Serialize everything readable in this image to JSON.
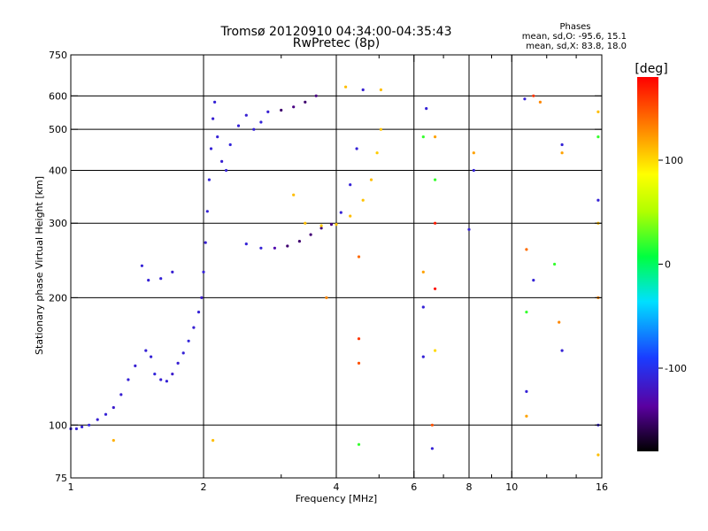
{
  "chart_data": {
    "type": "scatter",
    "title": "Tromsø 20120910 04:34:00-04:35:43",
    "subtitle": "RwPretec (8p)",
    "xlabel": "Frequency [MHz]",
    "ylabel": "Stationary phase Virtual Height [km]",
    "x_scale": "log",
    "y_scale": "log",
    "xlim": [
      1,
      16
    ],
    "ylim": [
      75,
      750
    ],
    "x_ticks": [
      1,
      2,
      4,
      6,
      8,
      10,
      16
    ],
    "x_tick_labels": [
      "1",
      "2",
      "4",
      "6",
      "8",
      "10",
      "16"
    ],
    "x_minor_ticks": [
      3,
      5,
      7,
      9,
      12,
      14
    ],
    "y_ticks": [
      75,
      100,
      200,
      300,
      400,
      500,
      600,
      750
    ],
    "y_tick_labels": [
      "75",
      "100",
      "200",
      "300",
      "400",
      "500",
      "600",
      "750"
    ],
    "grid": true,
    "phases": {
      "title": "Phases",
      "line_o": "mean, sd,O: -95.6, 15.1",
      "line_x": "mean, sd,X:  83.8, 18.0"
    },
    "colorbar": {
      "label": "[deg]",
      "min": -180,
      "max": 180,
      "ticks": [
        100,
        0,
        -100
      ],
      "tick_labels": [
        "100",
        "0",
        "-100"
      ]
    },
    "series": [
      {
        "points": [
          [
            1.0,
            98,
            -110
          ],
          [
            1.03,
            98,
            -110
          ],
          [
            1.06,
            99,
            -110
          ],
          [
            1.1,
            100,
            -108
          ],
          [
            1.15,
            103,
            -112
          ],
          [
            1.2,
            106,
            -110
          ],
          [
            1.25,
            110,
            -115
          ],
          [
            1.3,
            118,
            -112
          ],
          [
            1.35,
            128,
            -110
          ],
          [
            1.4,
            138,
            -112
          ],
          [
            1.48,
            150,
            -110
          ],
          [
            1.52,
            145,
            -110
          ],
          [
            1.55,
            132,
            -108
          ],
          [
            1.6,
            128,
            -112
          ],
          [
            1.65,
            127,
            -110
          ],
          [
            1.7,
            132,
            -115
          ],
          [
            1.75,
            140,
            -112
          ],
          [
            1.8,
            148,
            -110
          ],
          [
            1.85,
            158,
            -108
          ],
          [
            1.9,
            170,
            -112
          ],
          [
            1.95,
            185,
            -110
          ],
          [
            1.98,
            200,
            -115
          ],
          [
            2.0,
            230,
            -110
          ],
          [
            2.02,
            270,
            -112
          ],
          [
            2.04,
            320,
            -110
          ],
          [
            2.06,
            380,
            -108
          ],
          [
            2.08,
            450,
            -110
          ],
          [
            2.1,
            530,
            -112
          ],
          [
            2.12,
            580,
            -110
          ],
          [
            2.15,
            480,
            -110
          ],
          [
            2.2,
            420,
            -112
          ],
          [
            2.25,
            400,
            -110
          ],
          [
            2.3,
            460,
            -108
          ],
          [
            2.4,
            510,
            -110
          ],
          [
            2.5,
            540,
            -112
          ],
          [
            2.6,
            500,
            -110
          ],
          [
            2.7,
            520,
            -108
          ],
          [
            2.8,
            550,
            -112
          ],
          [
            3.0,
            555,
            -150
          ],
          [
            3.2,
            565,
            -145
          ],
          [
            3.4,
            580,
            -150
          ],
          [
            3.6,
            600,
            -145
          ],
          [
            1.5,
            220,
            -110
          ],
          [
            1.6,
            222,
            -110
          ],
          [
            1.7,
            230,
            -112
          ],
          [
            1.45,
            238,
            -110
          ],
          [
            2.5,
            268,
            -110
          ],
          [
            2.7,
            262,
            -110
          ],
          [
            2.9,
            262,
            -130
          ],
          [
            3.1,
            265,
            -150
          ],
          [
            3.3,
            272,
            -150
          ],
          [
            3.5,
            282,
            -148
          ],
          [
            3.7,
            292,
            -148
          ],
          [
            3.9,
            298,
            -145
          ],
          [
            4.1,
            318,
            -110
          ],
          [
            4.3,
            370,
            -110
          ],
          [
            4.45,
            450,
            -110
          ],
          [
            4.6,
            620,
            -112
          ],
          [
            3.4,
            300,
            110
          ],
          [
            3.7,
            296,
            105
          ],
          [
            4.0,
            298,
            108
          ],
          [
            4.3,
            312,
            110
          ],
          [
            4.6,
            340,
            108
          ],
          [
            4.8,
            380,
            110
          ],
          [
            4.95,
            440,
            105
          ],
          [
            5.05,
            500,
            108
          ],
          [
            5.05,
            620,
            110
          ],
          [
            4.2,
            630,
            110
          ],
          [
            1.25,
            92,
            115
          ],
          [
            2.1,
            92,
            110
          ],
          [
            3.2,
            350,
            110
          ],
          [
            4.5,
            90,
            20
          ],
          [
            4.5,
            250,
            140
          ],
          [
            4.5,
            160,
            160
          ],
          [
            4.5,
            140,
            150
          ],
          [
            3.8,
            200,
            130
          ],
          [
            6.3,
            230,
            120
          ],
          [
            6.3,
            190,
            -110
          ],
          [
            6.3,
            145,
            -110
          ],
          [
            6.3,
            480,
            20
          ],
          [
            6.4,
            560,
            -110
          ],
          [
            6.6,
            100,
            150
          ],
          [
            6.6,
            88,
            -110
          ],
          [
            6.7,
            300,
            170
          ],
          [
            6.7,
            210,
            175
          ],
          [
            6.7,
            480,
            120
          ],
          [
            6.7,
            380,
            20
          ],
          [
            6.7,
            150,
            100
          ],
          [
            8.0,
            290,
            -110
          ],
          [
            8.2,
            400,
            -110
          ],
          [
            8.2,
            440,
            120
          ],
          [
            10.7,
            590,
            -110
          ],
          [
            11.2,
            600,
            160
          ],
          [
            11.6,
            580,
            130
          ],
          [
            10.8,
            120,
            -110
          ],
          [
            10.8,
            105,
            120
          ],
          [
            10.8,
            185,
            20
          ],
          [
            10.8,
            260,
            140
          ],
          [
            11.2,
            220,
            -110
          ],
          [
            12.5,
            240,
            20
          ],
          [
            13.0,
            460,
            -110
          ],
          [
            13.0,
            440,
            120
          ],
          [
            13.0,
            150,
            -110
          ],
          [
            12.8,
            175,
            130
          ],
          [
            15.7,
            550,
            110
          ],
          [
            15.7,
            480,
            20
          ],
          [
            15.7,
            300,
            110
          ],
          [
            15.7,
            200,
            130
          ],
          [
            15.7,
            100,
            -110
          ],
          [
            15.7,
            85,
            110
          ],
          [
            15.7,
            340,
            -110
          ]
        ]
      }
    ]
  }
}
